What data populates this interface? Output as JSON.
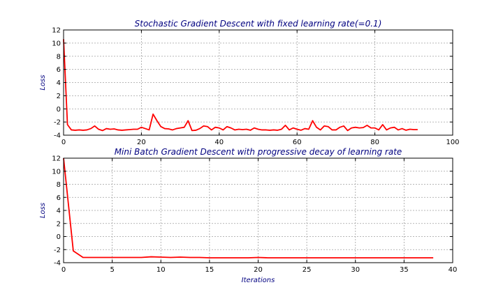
{
  "chart_data": [
    {
      "type": "line",
      "title": "Stochastic Gradient Descent with fixed learning rate(=0.1)",
      "xlabel": "",
      "ylabel": "Loss",
      "xlim": [
        0,
        100
      ],
      "ylim": [
        -4,
        12
      ],
      "xticks": [
        0,
        20,
        40,
        60,
        80,
        100
      ],
      "yticks": [
        -4,
        -2,
        0,
        2,
        4,
        6,
        8,
        10,
        12
      ],
      "grid": true,
      "color": "#ff0000",
      "series": [
        {
          "x": [
            0,
            1,
            2,
            3,
            4,
            5,
            6,
            7,
            8,
            9,
            10,
            11,
            12,
            13,
            14,
            15,
            16,
            17,
            18,
            19,
            20,
            21,
            22,
            23,
            24,
            25,
            26,
            27,
            28,
            29,
            30,
            31,
            32,
            33,
            34,
            35,
            36,
            37,
            38,
            39,
            40,
            41,
            42,
            43,
            44,
            45,
            46,
            47,
            48,
            49,
            50,
            51,
            52,
            53,
            54,
            55,
            56,
            57,
            58,
            59,
            60,
            61,
            62,
            63,
            64,
            65,
            66,
            67,
            68,
            69,
            70,
            71,
            72,
            73,
            74,
            75,
            76,
            77,
            78,
            79,
            80,
            81,
            82,
            83,
            84,
            85,
            86,
            87,
            88,
            89,
            90,
            91
          ],
          "y": [
            10.6,
            -2.4,
            -3.2,
            -3.25,
            -3.2,
            -3.25,
            -3.2,
            -3.0,
            -2.6,
            -3.1,
            -3.3,
            -3.0,
            -3.1,
            -3.05,
            -3.2,
            -3.25,
            -3.2,
            -3.15,
            -3.1,
            -3.1,
            -2.8,
            -3.0,
            -3.2,
            -0.8,
            -1.8,
            -2.7,
            -3.0,
            -3.05,
            -3.2,
            -3.0,
            -2.9,
            -2.8,
            -1.8,
            -3.3,
            -3.25,
            -3.0,
            -2.6,
            -2.7,
            -3.2,
            -2.8,
            -2.9,
            -3.2,
            -2.7,
            -2.9,
            -3.2,
            -3.1,
            -3.15,
            -3.1,
            -3.25,
            -2.9,
            -3.1,
            -3.2,
            -3.2,
            -3.25,
            -3.2,
            -3.25,
            -3.1,
            -2.5,
            -3.2,
            -2.9,
            -3.1,
            -3.25,
            -3.0,
            -3.1,
            -1.8,
            -2.8,
            -3.2,
            -2.6,
            -2.7,
            -3.2,
            -3.2,
            -2.8,
            -2.6,
            -3.3,
            -2.9,
            -2.8,
            -2.9,
            -2.85,
            -2.5,
            -2.9,
            -2.9,
            -3.2,
            -2.4,
            -3.2,
            -2.9,
            -2.8,
            -3.2,
            -3.0,
            -3.25,
            -3.1,
            -3.15,
            -3.15
          ]
        }
      ]
    },
    {
      "type": "line",
      "title": "Mini Batch Gradient Descent with progressive decay of learning rate",
      "xlabel": "Iterations",
      "ylabel": "Loss",
      "xlim": [
        0,
        40
      ],
      "ylim": [
        -4,
        12
      ],
      "xticks": [
        0,
        5,
        10,
        15,
        20,
        25,
        30,
        35,
        40
      ],
      "yticks": [
        -4,
        -2,
        0,
        2,
        4,
        6,
        8,
        10,
        12
      ],
      "grid": true,
      "color": "#ff0000",
      "series": [
        {
          "x": [
            0,
            1,
            2,
            3,
            4,
            5,
            6,
            7,
            8,
            9,
            10,
            11,
            12,
            13,
            14,
            15,
            16,
            17,
            18,
            19,
            20,
            21,
            22,
            23,
            24,
            25,
            26,
            27,
            28,
            29,
            30,
            31,
            32,
            33,
            34,
            35,
            36,
            37,
            38
          ],
          "y": [
            12,
            -2.2,
            -3.2,
            -3.2,
            -3.2,
            -3.2,
            -3.2,
            -3.2,
            -3.2,
            -3.1,
            -3.15,
            -3.2,
            -3.15,
            -3.2,
            -3.2,
            -3.25,
            -3.25,
            -3.25,
            -3.25,
            -3.25,
            -3.2,
            -3.25,
            -3.25,
            -3.25,
            -3.25,
            -3.25,
            -3.25,
            -3.25,
            -3.25,
            -3.25,
            -3.25,
            -3.25,
            -3.25,
            -3.25,
            -3.25,
            -3.25,
            -3.25,
            -3.25,
            -3.25
          ]
        }
      ]
    }
  ]
}
